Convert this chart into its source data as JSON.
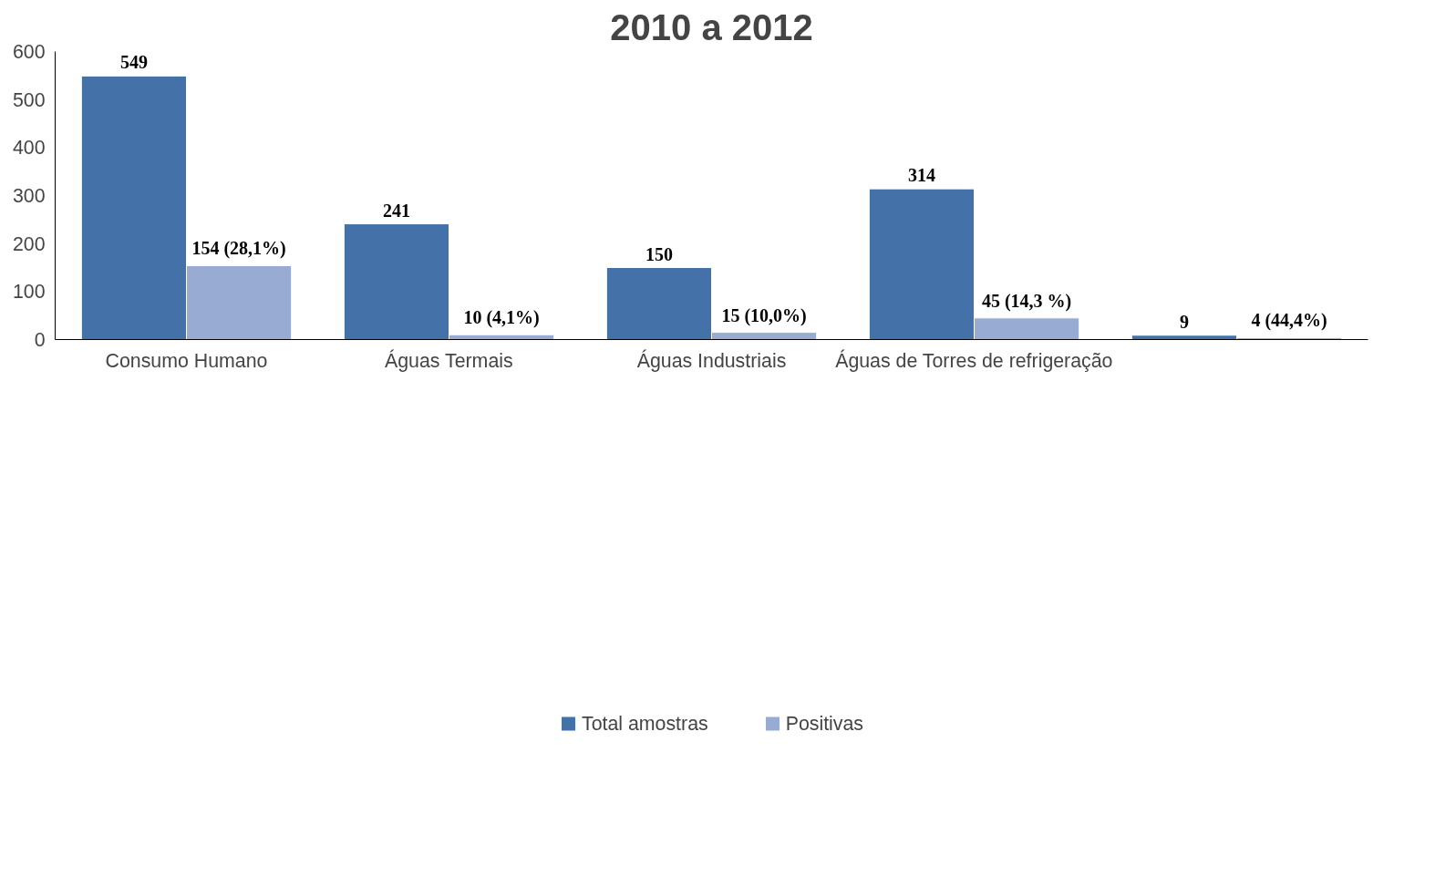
{
  "chart_data": {
    "type": "bar",
    "title": "2010 a 2012",
    "categories": [
      "Consumo Humano",
      "Águas Termais",
      "Águas Industriais",
      "Águas de Torres de refrigeração",
      null
    ],
    "series": [
      {
        "name": "Total amostras",
        "color": "#4472a8",
        "values": [
          549,
          241,
          150,
          314,
          9
        ],
        "value_labels": [
          "549",
          "241",
          "150",
          "314",
          "9"
        ]
      },
      {
        "name": "Positivas",
        "color": "#98abd3",
        "values": [
          154,
          10,
          15,
          45,
          4
        ],
        "value_labels": [
          "154 (28,1%)",
          "10 (4,1%)",
          "15 (10,0%)",
          "45 (14,3 %)",
          "4 (44,4%)"
        ]
      }
    ],
    "ylim": [
      0,
      600
    ],
    "yticks": [
      0,
      100,
      200,
      300,
      400,
      500,
      600
    ],
    "legend": "bottom"
  }
}
